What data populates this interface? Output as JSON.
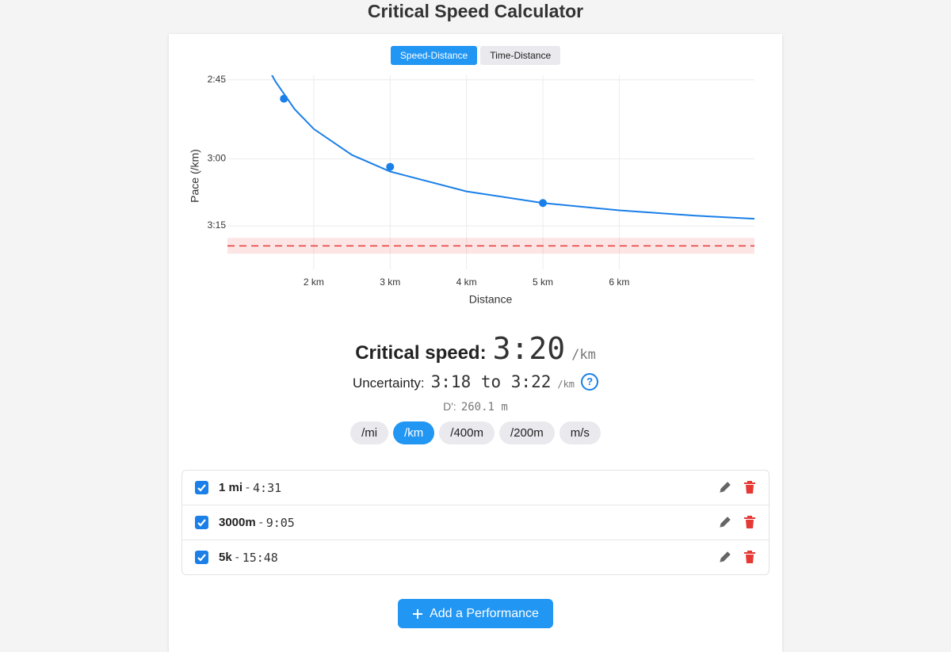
{
  "header": {
    "title": "Critical Speed Calculator"
  },
  "chart_tabs": {
    "items": [
      "Speed-Distance",
      "Time-Distance"
    ],
    "active": 0
  },
  "chart_data": {
    "type": "line",
    "y_label": "Pace (/km)",
    "x_label": "Distance",
    "xlim": [
      0.87,
      7.77
    ],
    "xticks": [
      {
        "value": 2,
        "label": "2 km"
      },
      {
        "value": 3,
        "label": "3 km"
      },
      {
        "value": 4,
        "label": "4 km"
      },
      {
        "value": 5,
        "label": "5 km"
      },
      {
        "value": 6,
        "label": "6 km"
      }
    ],
    "ylim": [
      4.85,
      6.09
    ],
    "yticks": [
      {
        "value": 6.061,
        "label": "2:45"
      },
      {
        "value": 5.556,
        "label": "3:00"
      },
      {
        "value": 5.128,
        "label": "3:15"
      }
    ],
    "grid": true,
    "curve": {
      "color": "#1a7fe8",
      "x": [
        1.45,
        1.5,
        1.75,
        2,
        2.5,
        3,
        4,
        5,
        6,
        7,
        7.77
      ],
      "values": [
        6.093,
        6.049,
        5.873,
        5.747,
        5.581,
        5.475,
        5.348,
        5.274,
        5.227,
        5.193,
        5.173
      ]
    },
    "points": {
      "color": "#1a7fe8",
      "x": [
        1.609,
        3,
        5
      ],
      "values": [
        5.94,
        5.505,
        5.274
      ]
    },
    "critical_speed": 5.0,
    "critical_speed_color": "#e53935",
    "uncertainty_band": [
      5.051,
      4.95
    ]
  },
  "results": {
    "cs_label": "Critical speed:",
    "cs_value": "3:20",
    "cs_unit": "/km",
    "uncertainty_label": "Uncertainty:",
    "uncertainty_value": "3:18 to 3:22",
    "uncertainty_unit": "/km",
    "help": "?",
    "dprime_label": "D':",
    "dprime_value": "260.1 m"
  },
  "units": {
    "items": [
      "/mi",
      "/km",
      "/400m",
      "/200m",
      "m/s"
    ],
    "active": 1
  },
  "performances": {
    "separator": "-",
    "rows": [
      {
        "distance": "1 mi",
        "time": "4:31",
        "checked": true
      },
      {
        "distance": "3000m",
        "time": "9:05",
        "checked": true
      },
      {
        "distance": "5k",
        "time": "15:48",
        "checked": true
      }
    ]
  },
  "add_button": "Add a Performance"
}
